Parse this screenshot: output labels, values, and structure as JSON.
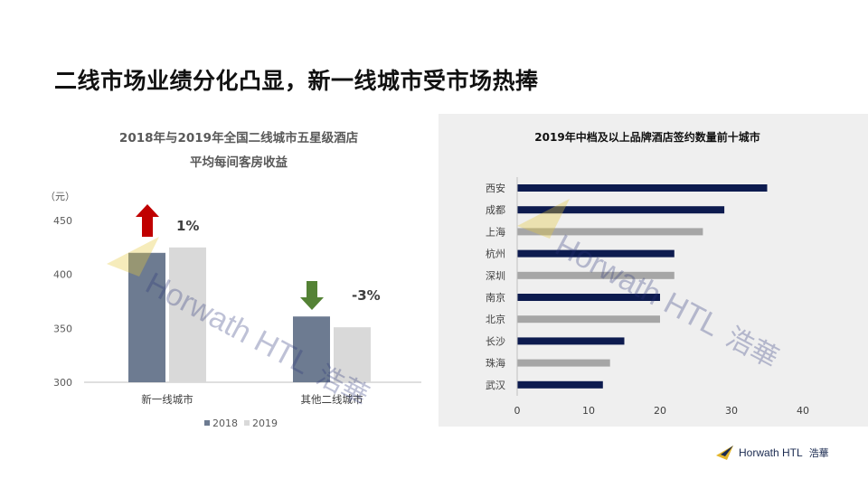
{
  "page": {
    "title": "二线市场业绩分化凸显，新一线城市受市场热捧"
  },
  "brand": {
    "name": "Horwath HTL",
    "name_cn": "浩華"
  },
  "watermark": {
    "text": "Horwath HTL",
    "text_cn": "浩華"
  },
  "chart_data": [
    {
      "type": "bar",
      "title": "2018年与2019年全国二线城市五星级酒店",
      "subtitle": "平均每间客房收益",
      "ylabel": "（元）",
      "xlabel": "",
      "categories": [
        "新一线城市",
        "其他二线城市"
      ],
      "series": [
        {
          "name": "2018",
          "values": [
            420,
            361
          ],
          "color": "#6d7b91"
        },
        {
          "name": "2019",
          "values": [
            425,
            351
          ],
          "color": "#d9d9d9"
        }
      ],
      "ylim": [
        300,
        450
      ],
      "yticks": [
        300,
        350,
        400,
        450
      ],
      "legend": "bottom",
      "grid": false,
      "annotations": [
        {
          "category": "新一线城市",
          "text": "1%",
          "direction": "up",
          "color": "#c00000"
        },
        {
          "category": "其他二线城市",
          "text": "-3%",
          "direction": "down",
          "color": "#548235"
        }
      ]
    },
    {
      "type": "bar",
      "orientation": "horizontal",
      "title": "2019年中档及以上品牌酒店签约数量前十城市",
      "categories": [
        "西安",
        "成都",
        "上海",
        "杭州",
        "深圳",
        "南京",
        "北京",
        "长沙",
        "珠海",
        "武汉"
      ],
      "values": [
        35,
        29,
        26,
        22,
        22,
        20,
        20,
        15,
        13,
        12
      ],
      "colors": [
        "#0d1b4f",
        "#0d1b4f",
        "#a6a6a6",
        "#0d1b4f",
        "#a6a6a6",
        "#0d1b4f",
        "#a6a6a6",
        "#0d1b4f",
        "#a6a6a6",
        "#0d1b4f"
      ],
      "xlim": [
        0,
        40
      ],
      "xticks": [
        0,
        10,
        20,
        30,
        40
      ],
      "grid": false,
      "legend": "none"
    }
  ]
}
